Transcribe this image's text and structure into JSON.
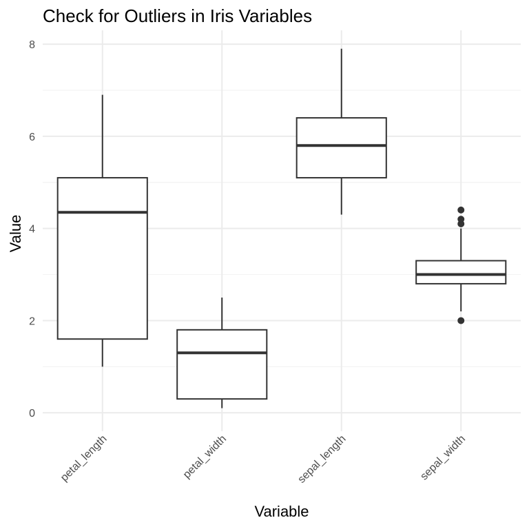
{
  "chart_data": {
    "type": "boxplot",
    "title": "Check for Outliers in Iris Variables",
    "xlabel": "Variable",
    "ylabel": "Value",
    "ylim": [
      -0.4,
      8.3
    ],
    "yticks": [
      0,
      2,
      4,
      6,
      8
    ],
    "grid": true,
    "categories": [
      "petal_length",
      "petal_width",
      "sepal_length",
      "sepal_width"
    ],
    "boxes": [
      {
        "category": "petal_length",
        "whisker_low": 1.0,
        "q1": 1.6,
        "median": 4.35,
        "q3": 5.1,
        "whisker_high": 6.9,
        "outliers": []
      },
      {
        "category": "petal_width",
        "whisker_low": 0.1,
        "q1": 0.3,
        "median": 1.3,
        "q3": 1.8,
        "whisker_high": 2.5,
        "outliers": []
      },
      {
        "category": "sepal_length",
        "whisker_low": 4.3,
        "q1": 5.1,
        "median": 5.8,
        "q3": 6.4,
        "whisker_high": 7.9,
        "outliers": []
      },
      {
        "category": "sepal_width",
        "whisker_low": 2.2,
        "q1": 2.8,
        "median": 3.0,
        "q3": 3.3,
        "whisker_high": 4.0,
        "outliers": [
          2.0,
          4.1,
          4.2,
          4.4
        ]
      }
    ]
  }
}
